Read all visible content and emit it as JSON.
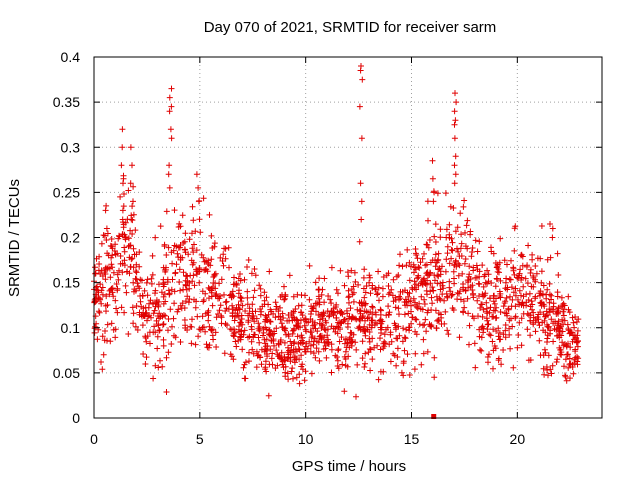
{
  "chart_data": {
    "type": "scatter",
    "title": "Day 070 of 2021, SRMTID for receiver sarm",
    "xlabel": "GPS time / hours",
    "ylabel": "SRMTID / TECUs",
    "xlim": [
      0,
      24
    ],
    "ylim": [
      0,
      0.4
    ],
    "x_ticks": [
      0,
      5,
      10,
      15,
      20
    ],
    "x_tick_labels": [
      "0",
      "5",
      "10",
      "15",
      "20"
    ],
    "y_ticks": [
      0,
      0.05,
      0.1,
      0.15,
      0.2,
      0.25,
      0.3,
      0.35,
      0.4
    ],
    "y_tick_labels": [
      "0",
      "0.05",
      "0.1",
      "0.15",
      "0.2",
      "0.25",
      "0.3",
      "0.35",
      "0.4"
    ],
    "grid": true,
    "marker": "+",
    "marker_color": "#e00000",
    "zero_marker": {
      "x": 16.05,
      "y": 0.0
    },
    "envelope": {
      "hours": [
        0,
        0.5,
        1,
        1.5,
        2,
        2.5,
        3,
        3.5,
        4,
        4.5,
        5,
        5.5,
        6,
        6.5,
        7,
        7.5,
        8,
        8.5,
        9,
        9.5,
        10,
        10.5,
        11,
        11.5,
        12,
        12.5,
        13,
        13.5,
        14,
        14.5,
        15,
        15.5,
        16,
        16.5,
        17,
        17.5,
        18,
        18.5,
        19,
        19.5,
        20,
        20.5,
        21,
        21.5,
        22,
        22.5,
        22.9
      ],
      "center": [
        0.12,
        0.15,
        0.16,
        0.2,
        0.15,
        0.12,
        0.11,
        0.14,
        0.16,
        0.15,
        0.16,
        0.15,
        0.13,
        0.12,
        0.11,
        0.11,
        0.1,
        0.09,
        0.085,
        0.09,
        0.1,
        0.1,
        0.095,
        0.1,
        0.1,
        0.11,
        0.11,
        0.105,
        0.11,
        0.12,
        0.13,
        0.14,
        0.14,
        0.16,
        0.18,
        0.16,
        0.14,
        0.13,
        0.12,
        0.12,
        0.13,
        0.13,
        0.12,
        0.11,
        0.1,
        0.08,
        0.08
      ],
      "spread": [
        0.03,
        0.04,
        0.04,
        0.04,
        0.035,
        0.035,
        0.035,
        0.045,
        0.045,
        0.04,
        0.04,
        0.04,
        0.035,
        0.035,
        0.03,
        0.03,
        0.03,
        0.03,
        0.03,
        0.03,
        0.03,
        0.03,
        0.028,
        0.028,
        0.03,
        0.03,
        0.03,
        0.03,
        0.03,
        0.035,
        0.035,
        0.04,
        0.04,
        0.045,
        0.045,
        0.04,
        0.035,
        0.035,
        0.035,
        0.035,
        0.035,
        0.035,
        0.035,
        0.035,
        0.03,
        0.025,
        0.02
      ]
    },
    "spikes": [
      {
        "x": 1.3,
        "values": [
          0.32,
          0.3,
          0.28,
          0.26,
          0.245,
          0.23,
          0.22
        ]
      },
      {
        "x": 1.8,
        "values": [
          0.3,
          0.28,
          0.26,
          0.24,
          0.22
        ]
      },
      {
        "x": 3.6,
        "values": [
          0.365,
          0.355,
          0.345,
          0.34,
          0.32,
          0.31,
          0.28,
          0.27,
          0.255
        ]
      },
      {
        "x": 12.6,
        "values": [
          0.39,
          0.385,
          0.375,
          0.345,
          0.31,
          0.26,
          0.24,
          0.22
        ]
      },
      {
        "x": 17.1,
        "values": [
          0.36,
          0.35,
          0.34,
          0.33,
          0.325,
          0.31,
          0.29,
          0.28,
          0.27,
          0.26
        ]
      },
      {
        "x": 16.0,
        "values": [
          0.285,
          0.265,
          0.25,
          0.24
        ]
      },
      {
        "x": 0.55,
        "values": [
          0.235,
          0.23,
          0.21
        ]
      },
      {
        "x": 4.9,
        "values": [
          0.27,
          0.255,
          0.24
        ]
      },
      {
        "x": 21.6,
        "values": [
          0.215,
          0.21,
          0.2
        ]
      }
    ],
    "n_points": 1900,
    "seed": 70
  }
}
